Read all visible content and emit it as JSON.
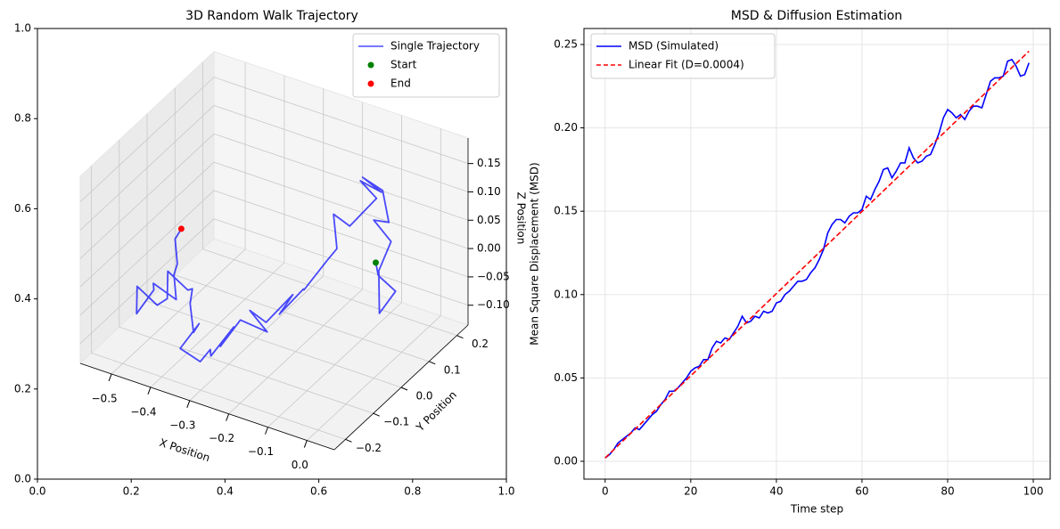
{
  "chart_data": [
    {
      "type": "line3d",
      "title": "3D Random Walk Trajectory",
      "frame_xlim": [
        0,
        1
      ],
      "frame_ylim": [
        0,
        1
      ],
      "frame_xticks": [
        {
          "value": 0,
          "label": "0.0"
        },
        {
          "value": 0.2,
          "label": "0.2"
        },
        {
          "value": 0.4,
          "label": "0.4"
        },
        {
          "value": 0.6,
          "label": "0.6"
        },
        {
          "value": 0.8,
          "label": "0.8"
        },
        {
          "value": 1,
          "label": "1.0"
        }
      ],
      "frame_yticks": [
        {
          "value": 0,
          "label": "0.0"
        },
        {
          "value": 0.2,
          "label": "0.2"
        },
        {
          "value": 0.4,
          "label": "0.4"
        },
        {
          "value": 0.6,
          "label": "0.6"
        },
        {
          "value": 0.8,
          "label": "0.8"
        },
        {
          "value": 1,
          "label": "1.0"
        }
      ],
      "xlabel": "X Position",
      "ylabel": "Y Position",
      "zlabel": "Z Position",
      "xlim": [
        -0.58,
        0.07
      ],
      "ylim": [
        -0.24,
        0.24
      ],
      "zlim": [
        -0.135,
        0.195
      ],
      "xticks": [
        {
          "value": -0.5,
          "label": "−0.5"
        },
        {
          "value": -0.4,
          "label": "−0.4"
        },
        {
          "value": -0.3,
          "label": "−0.3"
        },
        {
          "value": -0.2,
          "label": "−0.2"
        },
        {
          "value": -0.1,
          "label": "−0.1"
        },
        {
          "value": 0,
          "label": "0.0"
        }
      ],
      "yticks": [
        {
          "value": -0.2,
          "label": "−0.2"
        },
        {
          "value": -0.1,
          "label": "−0.1"
        },
        {
          "value": 0,
          "label": "0.0"
        },
        {
          "value": 0.1,
          "label": "0.1"
        },
        {
          "value": 0.2,
          "label": "0.2"
        }
      ],
      "zticks": [
        {
          "value": -0.1,
          "label": "−0.10"
        },
        {
          "value": -0.05,
          "label": "−0.05"
        },
        {
          "value": 0,
          "label": "0.00"
        },
        {
          "value": 0.05,
          "label": "0.05"
        },
        {
          "value": 0.1,
          "label": "0.10"
        },
        {
          "value": 0.15,
          "label": "0.15"
        }
      ],
      "grid": true,
      "legend": "upper right",
      "series": [
        {
          "name": "Single Trajectory",
          "kind": "line",
          "color": "#0000ff",
          "alpha": 0.7,
          "x": [
            0.005,
            -0.01,
            0.02,
            0.0,
            -0.03,
            -0.02,
            -0.05,
            -0.04,
            -0.07,
            -0.1,
            -0.08,
            -0.12,
            -0.1,
            -0.14,
            -0.16,
            -0.13,
            -0.17,
            -0.2,
            -0.18,
            -0.22,
            -0.2,
            -0.24,
            -0.26,
            -0.23,
            -0.27,
            -0.3,
            -0.28,
            -0.31,
            -0.29,
            -0.33,
            -0.36,
            -0.34,
            -0.38,
            -0.35,
            -0.39,
            -0.42,
            -0.4,
            -0.44,
            -0.47,
            -0.45,
            -0.49,
            -0.52,
            -0.5,
            -0.47,
            -0.45,
            -0.42,
            -0.44,
            -0.41,
            -0.43,
            -0.424
          ],
          "y": [
            0,
            0.03,
            0.05,
            0.02,
            0.06,
            0.09,
            0.07,
            0.11,
            0.13,
            0.1,
            0.14,
            0.12,
            0.15,
            0.11,
            0.08,
            0.05,
            0.07,
            0.03,
            0.0,
            -0.03,
            -0.01,
            -0.05,
            -0.08,
            -0.06,
            -0.1,
            -0.13,
            -0.11,
            -0.15,
            -0.18,
            -0.16,
            -0.19,
            -0.15,
            -0.12,
            -0.14,
            -0.1,
            -0.07,
            -0.09,
            -0.05,
            -0.08,
            -0.11,
            -0.09,
            -0.12,
            -0.15,
            -0.13,
            -0.16,
            -0.12,
            -0.1,
            -0.13,
            -0.11,
            -0.096
          ],
          "z": [
            0.07,
            0.03,
            0.0,
            -0.03,
            0.02,
            0.06,
            0.1,
            0.08,
            0.12,
            0.15,
            0.11,
            0.13,
            0.09,
            0.05,
            0.08,
            0.04,
            0.0,
            -0.04,
            -0.02,
            -0.06,
            -0.03,
            -0.07,
            -0.04,
            -0.08,
            -0.05,
            -0.09,
            -0.06,
            -0.1,
            -0.07,
            -0.11,
            -0.08,
            -0.05,
            -0.09,
            -0.06,
            -0.1,
            -0.07,
            -0.03,
            -0.06,
            -0.02,
            -0.05,
            -0.08,
            -0.04,
            -0.07,
            -0.03,
            0.0,
            -0.04,
            -0.01,
            0.03,
            0.06,
            0.073
          ]
        },
        {
          "name": "Start",
          "kind": "scatter",
          "color": "#008000",
          "x": [
            0.005
          ],
          "y": [
            0
          ],
          "z": [
            0.07
          ]
        },
        {
          "name": "End",
          "kind": "scatter",
          "color": "#ff0000",
          "x": [
            -0.424
          ],
          "y": [
            -0.096
          ],
          "z": [
            0.073
          ]
        }
      ]
    },
    {
      "type": "line",
      "title": "MSD & Diffusion Estimation",
      "xlabel": "Time step",
      "ylabel": "Mean Square Displacement (MSD)",
      "x": [
        0,
        1,
        2,
        3,
        4,
        5,
        6,
        7,
        8,
        9,
        10,
        11,
        12,
        13,
        14,
        15,
        16,
        17,
        18,
        19,
        20,
        21,
        22,
        23,
        24,
        25,
        26,
        27,
        28,
        29,
        30,
        31,
        32,
        33,
        34,
        35,
        36,
        37,
        38,
        39,
        40,
        41,
        42,
        43,
        44,
        45,
        46,
        47,
        48,
        49,
        50,
        51,
        52,
        53,
        54,
        55,
        56,
        57,
        58,
        59,
        60,
        61,
        62,
        63,
        64,
        65,
        66,
        67,
        68,
        69,
        70,
        71,
        72,
        73,
        74,
        75,
        76,
        77,
        78,
        79,
        80,
        81,
        82,
        83,
        84,
        85,
        86,
        87,
        88,
        89,
        90,
        91,
        92,
        93,
        94,
        95,
        96,
        97,
        98,
        99
      ],
      "xlim": [
        -4.95,
        103.95
      ],
      "ylim": [
        -0.0107,
        0.2596
      ],
      "xticks": [
        0,
        20,
        40,
        60,
        80,
        100
      ],
      "yticks": [
        {
          "value": 0,
          "label": "0.00"
        },
        0.05,
        {
          "value": 0.1,
          "label": "0.10"
        },
        0.15,
        {
          "value": 0.2,
          "label": "0.20"
        },
        0.25
      ],
      "grid": true,
      "legend": "upper left",
      "series": [
        {
          "name": "MSD (Simulated)",
          "color": "#0000ff",
          "dashed": false,
          "values": [
            0.002,
            0.004,
            0.007,
            0.011,
            0.013,
            0.015,
            0.017,
            0.02,
            0.019,
            0.022,
            0.025,
            0.028,
            0.03,
            0.034,
            0.037,
            0.042,
            0.042,
            0.044,
            0.047,
            0.05,
            0.054,
            0.056,
            0.057,
            0.061,
            0.061,
            0.068,
            0.072,
            0.071,
            0.074,
            0.073,
            0.077,
            0.081,
            0.087,
            0.083,
            0.084,
            0.087,
            0.086,
            0.09,
            0.089,
            0.09,
            0.095,
            0.096,
            0.1,
            0.102,
            0.105,
            0.108,
            0.108,
            0.109,
            0.113,
            0.116,
            0.121,
            0.127,
            0.137,
            0.142,
            0.145,
            0.145,
            0.143,
            0.147,
            0.149,
            0.149,
            0.151,
            0.159,
            0.157,
            0.163,
            0.168,
            0.175,
            0.176,
            0.17,
            0.174,
            0.179,
            0.179,
            0.188,
            0.182,
            0.179,
            0.18,
            0.183,
            0.184,
            0.19,
            0.197,
            0.206,
            0.211,
            0.209,
            0.206,
            0.208,
            0.205,
            0.21,
            0.213,
            0.213,
            0.212,
            0.22,
            0.228,
            0.23,
            0.23,
            0.231,
            0.24,
            0.241,
            0.237,
            0.231,
            0.232,
            0.239
          ]
        },
        {
          "name": "Linear Fit (D=0.0004)",
          "color": "#ff0000",
          "dashed": true,
          "x": [
            0,
            99
          ],
          "values": [
            0.002,
            0.246
          ]
        }
      ]
    }
  ]
}
